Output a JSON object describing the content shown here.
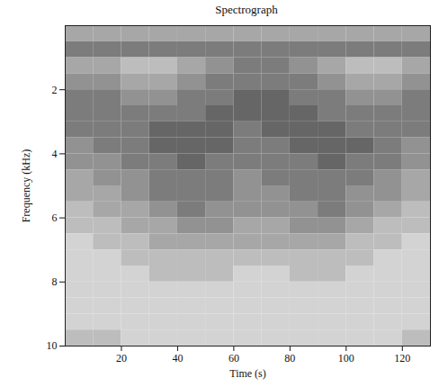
{
  "chart_data": {
    "type": "heatmap",
    "title": "Spectrograph",
    "x_label": "Time (s)",
    "y_label": "Frequency (kHz)",
    "xlim": [
      0,
      130
    ],
    "ylim": [
      0,
      10
    ],
    "xticks": [
      20,
      40,
      60,
      80,
      100,
      120
    ],
    "yticks": [
      2,
      4,
      6,
      8,
      10
    ],
    "x": [
      0,
      10,
      20,
      30,
      40,
      50,
      60,
      70,
      80,
      90,
      100,
      110,
      120,
      130
    ],
    "y": [
      0,
      0.5,
      1,
      1.5,
      2,
      2.5,
      3,
      3.5,
      4,
      4.5,
      5,
      5.5,
      6,
      6.5,
      7,
      7.5,
      8,
      8.5,
      9,
      9.5,
      10
    ],
    "zlim": [
      0,
      9
    ],
    "cells": [
      [
        4,
        4,
        4,
        4,
        4,
        4,
        4,
        4,
        4,
        4,
        4,
        4,
        4
      ],
      [
        6,
        6,
        6,
        6,
        6,
        6,
        6,
        6,
        6,
        6,
        6,
        6,
        6
      ],
      [
        4,
        4,
        3,
        3,
        4,
        5,
        6,
        6,
        5,
        4,
        3,
        3,
        4
      ],
      [
        5,
        5,
        4,
        4,
        5,
        6,
        6,
        6,
        6,
        5,
        4,
        4,
        5
      ],
      [
        6,
        6,
        5,
        5,
        6,
        6,
        7,
        7,
        6,
        6,
        5,
        5,
        6
      ],
      [
        6,
        6,
        6,
        6,
        6,
        7,
        7,
        7,
        7,
        6,
        6,
        6,
        6
      ],
      [
        6,
        6,
        6,
        7,
        7,
        7,
        6,
        7,
        7,
        7,
        6,
        6,
        6
      ],
      [
        5,
        6,
        6,
        7,
        7,
        7,
        6,
        6,
        7,
        7,
        7,
        6,
        5
      ],
      [
        5,
        5,
        6,
        6,
        7,
        6,
        6,
        6,
        6,
        7,
        6,
        6,
        5
      ],
      [
        4,
        5,
        5,
        6,
        6,
        6,
        5,
        6,
        6,
        6,
        6,
        5,
        4
      ],
      [
        4,
        4,
        5,
        6,
        6,
        6,
        5,
        5,
        6,
        6,
        5,
        5,
        4
      ],
      [
        3,
        4,
        4,
        5,
        6,
        5,
        5,
        5,
        5,
        6,
        5,
        4,
        3
      ],
      [
        3,
        3,
        4,
        4,
        5,
        5,
        4,
        4,
        5,
        5,
        4,
        3,
        3
      ],
      [
        2,
        3,
        3,
        4,
        4,
        4,
        4,
        4,
        4,
        4,
        3,
        3,
        2
      ],
      [
        2,
        2,
        3,
        3,
        3,
        3,
        3,
        3,
        3,
        3,
        3,
        2,
        2
      ],
      [
        2,
        2,
        2,
        3,
        3,
        3,
        2,
        2,
        3,
        3,
        2,
        2,
        2
      ],
      [
        2,
        2,
        2,
        2,
        2,
        2,
        2,
        2,
        2,
        2,
        2,
        2,
        2
      ],
      [
        2,
        2,
        2,
        2,
        2,
        2,
        2,
        2,
        2,
        2,
        2,
        2,
        2
      ],
      [
        2,
        2,
        2,
        2,
        2,
        2,
        2,
        2,
        2,
        2,
        2,
        2,
        2
      ],
      [
        3,
        3,
        2,
        2,
        2,
        2,
        2,
        2,
        2,
        2,
        2,
        2,
        3
      ]
    ]
  }
}
